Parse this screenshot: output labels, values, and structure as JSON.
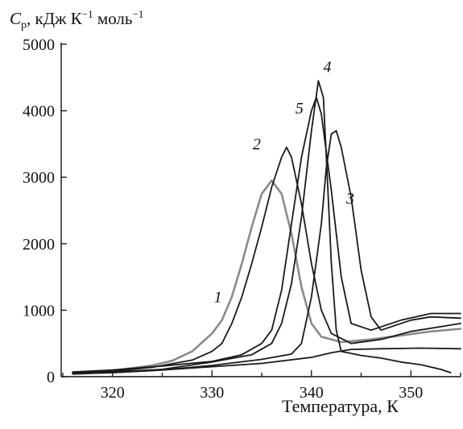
{
  "chart_data": {
    "type": "line",
    "title": "",
    "ylabel": {
      "symbol": "C",
      "subscript": "p",
      "unit_1": ", кДж К",
      "exp_1": "−1",
      "unit_2": " моль",
      "exp_2": "−1"
    },
    "xlabel": "Температура, К",
    "xlim": [
      315,
      355
    ],
    "ylim": [
      0,
      5000
    ],
    "x_ticks": [
      320,
      330,
      340,
      350
    ],
    "y_ticks": [
      0,
      1000,
      2000,
      3000,
      4000,
      5000
    ],
    "grid": false,
    "series": [
      {
        "name": "1",
        "color": "#8a8a8a",
        "label_at": [
          330.6,
          1120
        ],
        "points": [
          [
            316,
            60
          ],
          [
            320,
            90
          ],
          [
            324,
            170
          ],
          [
            326,
            240
          ],
          [
            328,
            380
          ],
          [
            330,
            650
          ],
          [
            331,
            850
          ],
          [
            332,
            1200
          ],
          [
            333,
            1700
          ],
          [
            334,
            2250
          ],
          [
            335,
            2750
          ],
          [
            336,
            2950
          ],
          [
            337,
            2750
          ],
          [
            338,
            2150
          ],
          [
            339,
            1350
          ],
          [
            340,
            800
          ],
          [
            341,
            600
          ],
          [
            343,
            520
          ],
          [
            346,
            560
          ],
          [
            349,
            620
          ],
          [
            352,
            680
          ],
          [
            355,
            720
          ]
        ]
      },
      {
        "name": "2",
        "color": "#1a1a1a",
        "label_at": [
          334.5,
          3420
        ],
        "points": [
          [
            316,
            60
          ],
          [
            320,
            80
          ],
          [
            324,
            140
          ],
          [
            328,
            250
          ],
          [
            330,
            380
          ],
          [
            331,
            500
          ],
          [
            332,
            800
          ],
          [
            333,
            1200
          ],
          [
            334,
            1700
          ],
          [
            335,
            2250
          ],
          [
            336,
            2850
          ],
          [
            337,
            3300
          ],
          [
            337.5,
            3450
          ],
          [
            338,
            3300
          ],
          [
            339,
            2600
          ],
          [
            340,
            1700
          ],
          [
            341,
            1000
          ],
          [
            342,
            650
          ],
          [
            344,
            500
          ],
          [
            347,
            560
          ],
          [
            350,
            680
          ],
          [
            355,
            800
          ]
        ]
      },
      {
        "name": "3",
        "color": "#1a1a1a",
        "label_at": [
          343.9,
          2600
        ],
        "points": [
          [
            316,
            50
          ],
          [
            320,
            60
          ],
          [
            325,
            100
          ],
          [
            330,
            170
          ],
          [
            335,
            260
          ],
          [
            338,
            340
          ],
          [
            339,
            500
          ],
          [
            340,
            1200
          ],
          [
            341,
            2300
          ],
          [
            341.5,
            3150
          ],
          [
            342,
            3650
          ],
          [
            342.5,
            3700
          ],
          [
            343,
            3450
          ],
          [
            344,
            2700
          ],
          [
            345,
            1600
          ],
          [
            346,
            900
          ],
          [
            347,
            700
          ],
          [
            350,
            850
          ],
          [
            352,
            900
          ],
          [
            355,
            880
          ]
        ]
      },
      {
        "name": "4",
        "color": "#1a1a1a",
        "label_at": [
          341.6,
          4580
        ],
        "points": [
          [
            316,
            50
          ],
          [
            320,
            70
          ],
          [
            325,
            110
          ],
          [
            330,
            220
          ],
          [
            334,
            330
          ],
          [
            336,
            500
          ],
          [
            337,
            800
          ],
          [
            338,
            1400
          ],
          [
            339,
            2400
          ],
          [
            340,
            3700
          ],
          [
            340.7,
            4450
          ],
          [
            341.2,
            4200
          ],
          [
            341.6,
            3000
          ],
          [
            342,
            1700
          ],
          [
            342.5,
            700
          ],
          [
            343,
            380
          ],
          [
            345,
            320
          ],
          [
            347,
            280
          ],
          [
            349,
            220
          ],
          [
            351,
            180
          ],
          [
            353,
            110
          ],
          [
            354,
            60
          ]
        ]
      },
      {
        "name": "5",
        "color": "#1a1a1a",
        "label_at": [
          338.8,
          3960
        ],
        "points": [
          [
            316,
            70
          ],
          [
            320,
            100
          ],
          [
            325,
            160
          ],
          [
            330,
            230
          ],
          [
            333,
            330
          ],
          [
            335,
            500
          ],
          [
            336,
            700
          ],
          [
            337,
            1300
          ],
          [
            338,
            2300
          ],
          [
            339,
            3300
          ],
          [
            340,
            4000
          ],
          [
            340.5,
            4200
          ],
          [
            341,
            3950
          ],
          [
            342,
            2800
          ],
          [
            343,
            1500
          ],
          [
            344,
            800
          ],
          [
            346,
            700
          ],
          [
            349,
            850
          ],
          [
            352,
            950
          ],
          [
            355,
            950
          ]
        ]
      },
      {
        "name": "",
        "color": "#1a1a1a",
        "label_at": null,
        "points": [
          [
            316,
            40
          ],
          [
            320,
            60
          ],
          [
            325,
            100
          ],
          [
            330,
            150
          ],
          [
            335,
            200
          ],
          [
            340,
            290
          ],
          [
            342,
            360
          ],
          [
            344,
            410
          ],
          [
            347,
            420
          ],
          [
            351,
            430
          ],
          [
            355,
            420
          ]
        ]
      }
    ]
  }
}
